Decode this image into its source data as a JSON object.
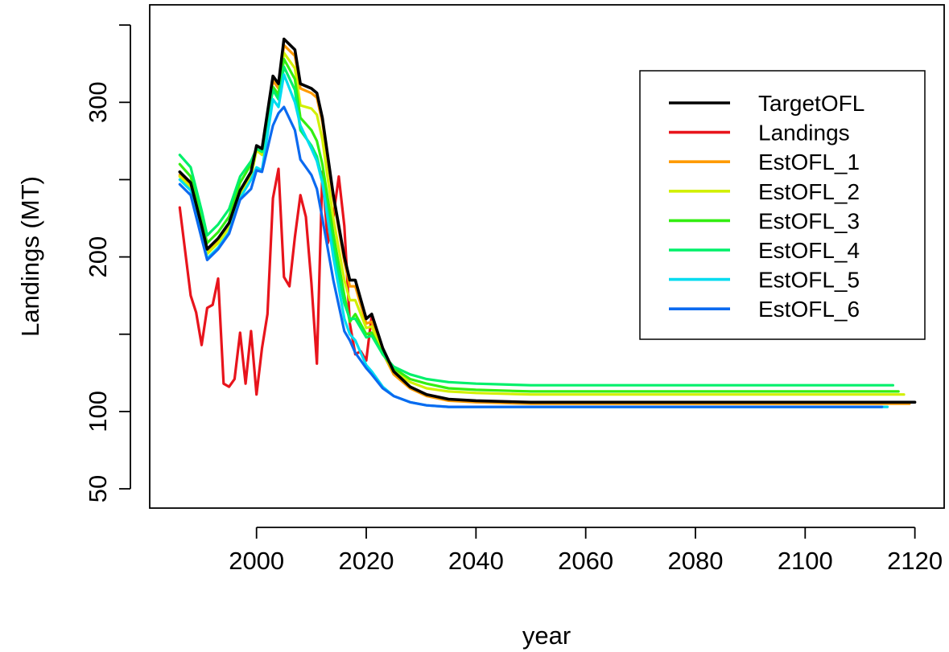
{
  "chart_data": {
    "type": "line",
    "title": "",
    "xlabel": "year",
    "ylabel": "Landings (MT)",
    "xlim": [
      1986,
      2120
    ],
    "ylim": [
      45,
      355
    ],
    "x_ticks": [
      2000,
      2020,
      2040,
      2060,
      2080,
      2100,
      2120
    ],
    "y_ticks": [
      50,
      100,
      200,
      300
    ],
    "y_ticks_extra": [
      150,
      250,
      350
    ],
    "legend_position": "top-right",
    "grid": false,
    "series": [
      {
        "name": "TargetOFL",
        "color": "#000000",
        "x": [
          1986,
          1988,
          1990,
          1991,
          1993,
          1995,
          1997,
          1999,
          2000,
          2001,
          2003,
          2004,
          2005,
          2007,
          2008,
          2010,
          2011,
          2012,
          2014,
          2016,
          2017,
          2018,
          2020,
          2021,
          2023,
          2025,
          2028,
          2031,
          2035,
          2040,
          2050,
          2120
        ],
        "values": [
          255,
          248,
          220,
          205,
          212,
          222,
          243,
          255,
          272,
          270,
          317,
          312,
          341,
          334,
          312,
          309,
          306,
          290,
          240,
          200,
          185,
          185,
          160,
          163,
          141,
          126,
          116,
          111,
          108,
          107,
          106,
          106
        ]
      },
      {
        "name": "Landings",
        "color": "#e8141c",
        "x": [
          1986,
          1988,
          1989,
          1990,
          1991,
          1992,
          1993,
          1994,
          1995,
          1996,
          1997,
          1998,
          1999,
          2000,
          2001,
          2002,
          2003,
          2004,
          2005,
          2006,
          2007,
          2008,
          2009,
          2010,
          2011,
          2012,
          2013,
          2014,
          2015,
          2016,
          2017,
          2018,
          2019,
          2020,
          2021
        ],
        "values": [
          232,
          175,
          164,
          143,
          167,
          169,
          186,
          118,
          116,
          121,
          151,
          118,
          152,
          111,
          141,
          163,
          238,
          257,
          187,
          181,
          213,
          240,
          226,
          183,
          131,
          255,
          209,
          226,
          252,
          220,
          157,
          137,
          139,
          133,
          162
        ]
      },
      {
        "name": "EstOFL_1",
        "color": "#ff9b00",
        "x": [
          1986,
          1988,
          1990,
          1991,
          1993,
          1995,
          1997,
          1999,
          2000,
          2001,
          2003,
          2004,
          2005,
          2007,
          2008,
          2010,
          2011,
          2012,
          2014,
          2016,
          2017,
          2018,
          2020,
          2021,
          2023,
          2025,
          2028,
          2031,
          2035,
          2040,
          2050,
          2119
        ],
        "values": [
          253,
          246,
          218,
          203,
          210,
          220,
          241,
          253,
          270,
          268,
          314,
          309,
          337,
          330,
          309,
          306,
          303,
          287,
          238,
          197,
          181,
          181,
          157,
          158,
          138,
          124,
          115,
          110,
          107,
          106,
          105,
          105
        ]
      },
      {
        "name": "EstOFL_2",
        "color": "#d2f000",
        "x": [
          1986,
          1988,
          1990,
          1991,
          1993,
          1995,
          1997,
          1999,
          2000,
          2001,
          2003,
          2004,
          2005,
          2007,
          2008,
          2010,
          2011,
          2012,
          2014,
          2016,
          2017,
          2018,
          2020,
          2021,
          2023,
          2025,
          2028,
          2031,
          2035,
          2040,
          2050,
          2118
        ],
        "values": [
          252,
          245,
          217,
          202,
          209,
          219,
          240,
          252,
          269,
          266,
          310,
          305,
          332,
          322,
          298,
          296,
          292,
          276,
          225,
          185,
          172,
          172,
          154,
          155,
          138,
          126,
          119,
          115,
          113,
          112,
          111,
          111
        ]
      },
      {
        "name": "EstOFL_3",
        "color": "#33ee11",
        "x": [
          1986,
          1988,
          1990,
          1991,
          1993,
          1995,
          1997,
          1999,
          2000,
          2001,
          2003,
          2004,
          2005,
          2007,
          2008,
          2010,
          2011,
          2012,
          2014,
          2016,
          2017,
          2018,
          2020,
          2021,
          2023,
          2025,
          2028,
          2031,
          2035,
          2040,
          2050,
          2117
        ],
        "values": [
          260,
          252,
          224,
          209,
          216,
          226,
          248,
          260,
          270,
          268,
          310,
          305,
          328,
          315,
          290,
          282,
          275,
          260,
          215,
          175,
          158,
          163,
          150,
          151,
          137,
          128,
          121,
          118,
          115,
          114,
          113,
          113
        ]
      },
      {
        "name": "EstOFL_4",
        "color": "#00f06a",
        "x": [
          1986,
          1988,
          1990,
          1991,
          1993,
          1995,
          1997,
          1999,
          2000,
          2001,
          2003,
          2004,
          2005,
          2007,
          2008,
          2010,
          2011,
          2012,
          2014,
          2016,
          2017,
          2018,
          2020,
          2021,
          2023,
          2025,
          2028,
          2031,
          2035,
          2040,
          2050,
          2116
        ],
        "values": [
          266,
          258,
          230,
          214,
          221,
          231,
          252,
          262,
          270,
          268,
          308,
          302,
          323,
          308,
          282,
          272,
          265,
          250,
          207,
          170,
          160,
          160,
          148,
          149,
          137,
          129,
          124,
          121,
          119,
          118,
          117,
          117
        ]
      },
      {
        "name": "EstOFL_5",
        "color": "#00dcf0",
        "x": [
          1986,
          1988,
          1990,
          1991,
          1993,
          1995,
          1997,
          1999,
          2000,
          2001,
          2003,
          2004,
          2005,
          2007,
          2008,
          2010,
          2011,
          2012,
          2014,
          2016,
          2017,
          2018,
          2020,
          2021,
          2023,
          2025,
          2028,
          2031,
          2035,
          2040,
          2050,
          2115
        ],
        "values": [
          250,
          243,
          214,
          199,
          206,
          216,
          238,
          250,
          258,
          256,
          302,
          297,
          318,
          300,
          285,
          270,
          262,
          248,
          200,
          160,
          150,
          146,
          130,
          126,
          116,
          110,
          106,
          104,
          103,
          103,
          103,
          103
        ]
      },
      {
        "name": "EstOFL_6",
        "color": "#0b6af0",
        "x": [
          1986,
          1988,
          1990,
          1991,
          1993,
          1995,
          1997,
          1999,
          2000,
          2001,
          2003,
          2004,
          2005,
          2007,
          2008,
          2010,
          2011,
          2012,
          2014,
          2016,
          2017,
          2018,
          2020,
          2021,
          2023,
          2025,
          2028,
          2031,
          2035,
          2040,
          2050,
          2114
        ],
        "values": [
          247,
          240,
          212,
          198,
          205,
          215,
          237,
          244,
          256,
          255,
          285,
          293,
          297,
          282,
          263,
          253,
          244,
          225,
          185,
          152,
          146,
          138,
          128,
          124,
          115,
          110,
          106,
          104,
          103,
          103,
          103,
          103
        ]
      }
    ]
  }
}
